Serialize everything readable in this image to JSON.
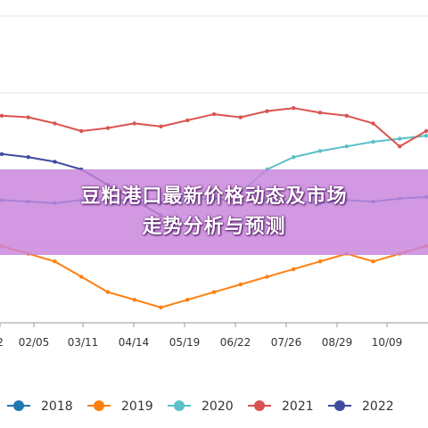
{
  "banner": {
    "line1": "豆粕港口最新价格动态及市场",
    "line2": "走势分析与预测"
  },
  "chart_data": {
    "type": "line",
    "title": "",
    "xlabel": "",
    "ylabel": "",
    "x_ticks": [
      "2",
      "02/05",
      "03/11",
      "04/14",
      "05/19",
      "06/22",
      "07/26",
      "08/29",
      "10/09"
    ],
    "ylim": [
      3000,
      5000
    ],
    "grid": true,
    "legend": "bottom",
    "series": [
      {
        "name": "2018",
        "color": "#1f77b4",
        "x": [
          0,
          1,
          2,
          3,
          4,
          5,
          6,
          7,
          8,
          9,
          10,
          11,
          12,
          13,
          14,
          15,
          16
        ],
        "values": [
          3800,
          3790,
          3780,
          3800,
          3810,
          3790,
          3780,
          3800,
          3810,
          3790,
          3800,
          3790,
          3780,
          3800,
          3790,
          3810,
          3820
        ]
      },
      {
        "name": "2019",
        "color": "#ff7f0e",
        "x": [
          0,
          1,
          2,
          3,
          4,
          5,
          6,
          7,
          8,
          9,
          10,
          11,
          12,
          13,
          14,
          15,
          16
        ],
        "values": [
          3500,
          3450,
          3400,
          3300,
          3200,
          3150,
          3100,
          3150,
          3200,
          3250,
          3300,
          3350,
          3400,
          3450,
          3400,
          3450,
          3500
        ]
      },
      {
        "name": "2020",
        "color": "#5bc0c8",
        "x": [
          9,
          10,
          11,
          12,
          13,
          14,
          15,
          16
        ],
        "values": [
          3850,
          4000,
          4080,
          4120,
          4150,
          4180,
          4200,
          4220
        ]
      },
      {
        "name": "2021",
        "color": "#d9534f",
        "x": [
          0,
          1,
          2,
          3,
          4,
          5,
          6,
          7,
          8,
          9,
          10,
          11,
          12,
          13,
          14,
          15,
          16
        ],
        "values": [
          4350,
          4340,
          4300,
          4250,
          4270,
          4300,
          4280,
          4320,
          4360,
          4340,
          4380,
          4400,
          4370,
          4350,
          4300,
          4150,
          4250
        ]
      },
      {
        "name": "2022",
        "color": "#3f4ba0",
        "x": [
          0,
          1,
          2,
          3,
          4,
          5,
          6
        ],
        "values": [
          4100,
          4080,
          4050,
          4000,
          3900,
          3800,
          3700
        ]
      }
    ]
  }
}
